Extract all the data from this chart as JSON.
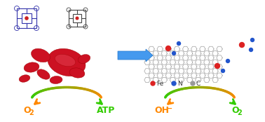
{
  "background_color": "#ffffff",
  "arrow_color": "#4da6ff",
  "left_panel": {
    "blood_cell_colors": [
      "#cc0000",
      "#dd1111",
      "#bb0000"
    ],
    "porphyrin_colors": [
      "#555566",
      "#3333aa"
    ]
  },
  "right_panel": {
    "graphene_color": "#888888",
    "fe_color": "#dd2222",
    "n_color": "#2255cc",
    "c_color": "#999999"
  },
  "legend": {
    "fe_label": "Fe",
    "n_label": "N",
    "c_label": "C",
    "fe_color": "#dd2222",
    "n_color": "#2255cc",
    "c_color": "#999999",
    "label_color": "#333333"
  },
  "bottom_left": {
    "o2_label": "O",
    "o2_sub": "2",
    "atp_label": "ATP",
    "o2_color": "#ff8800",
    "atp_color": "#33cc00",
    "arc_colors": [
      "#ff8800",
      "#aacc00",
      "#33cc00"
    ]
  },
  "bottom_right": {
    "oh_label": "OH",
    "oh_sup": "−",
    "o2_label": "O",
    "o2_sub": "2",
    "oh_color": "#ff8800",
    "o2_color": "#33cc00",
    "arc_colors": [
      "#ff8800",
      "#aacc00",
      "#33cc00"
    ]
  }
}
